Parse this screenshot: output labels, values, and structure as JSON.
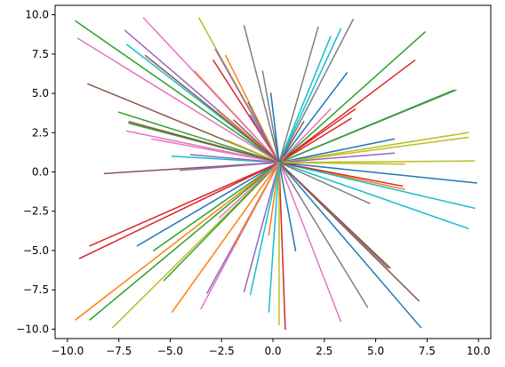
{
  "chart_data": {
    "type": "line",
    "title": "",
    "xlabel": "",
    "ylabel": "",
    "xlim": [
      -10.6,
      10.6
    ],
    "ylim": [
      -10.6,
      10.6
    ],
    "grid": false,
    "x_ticks": [
      -10.0,
      -7.5,
      -5.0,
      -2.5,
      0.0,
      2.5,
      5.0,
      7.5,
      10.0
    ],
    "y_ticks": [
      10.0,
      7.5,
      5.0,
      2.5,
      0.0,
      -2.5,
      -5.0,
      -7.5,
      -10.0
    ],
    "x_tick_labels": [
      "−10.0",
      "−7.5",
      "−5.0",
      "−2.5",
      "0.0",
      "2.5",
      "5.0",
      "7.5",
      "10.0"
    ],
    "y_tick_labels": [
      "10.0",
      "7.5",
      "5.0",
      "2.5",
      "0.0",
      "−2.5",
      "−5.0",
      "−7.5",
      "−10.0"
    ],
    "center": [
      0.3,
      0.6
    ],
    "series": [
      {
        "color": "#1f77b4",
        "end": [
          7.2,
          -9.9
        ]
      },
      {
        "color": "#ff7f0e",
        "end": [
          -4.9,
          -8.9
        ]
      },
      {
        "color": "#2ca02c",
        "end": [
          -8.9,
          -9.4
        ]
      },
      {
        "color": "#d62728",
        "end": [
          0.6,
          -10.0
        ]
      },
      {
        "color": "#9467bd",
        "end": [
          -1.4,
          -7.6
        ]
      },
      {
        "color": "#8c564b",
        "end": [
          7.1,
          -8.2
        ]
      },
      {
        "color": "#e377c2",
        "end": [
          3.3,
          -9.5
        ]
      },
      {
        "color": "#7f7f7f",
        "end": [
          4.6,
          -8.6
        ]
      },
      {
        "color": "#bcbd22",
        "end": [
          -7.8,
          -9.9
        ]
      },
      {
        "color": "#17becf",
        "end": [
          -1.1,
          -7.8
        ]
      },
      {
        "color": "#1f77b4",
        "end": [
          9.9,
          -0.7
        ]
      },
      {
        "color": "#ff7f0e",
        "end": [
          -9.6,
          -9.4
        ]
      },
      {
        "color": "#2ca02c",
        "end": [
          -5.3,
          -6.9
        ]
      },
      {
        "color": "#d62728",
        "end": [
          -9.4,
          -5.5
        ]
      },
      {
        "color": "#9467bd",
        "end": [
          -3.2,
          -7.7
        ]
      },
      {
        "color": "#8c564b",
        "end": [
          -8.2,
          -0.1
        ]
      },
      {
        "color": "#e377c2",
        "end": [
          -3.5,
          -8.7
        ]
      },
      {
        "color": "#7f7f7f",
        "end": [
          5.6,
          -6.1
        ]
      },
      {
        "color": "#bcbd22",
        "end": [
          9.8,
          0.7
        ]
      },
      {
        "color": "#17becf",
        "end": [
          9.5,
          -3.6
        ]
      },
      {
        "color": "#1f77b4",
        "end": [
          -6.6,
          -4.7
        ]
      },
      {
        "color": "#ff7f0e",
        "end": [
          6.4,
          -1.1
        ]
      },
      {
        "color": "#2ca02c",
        "end": [
          -5.8,
          -5.0
        ]
      },
      {
        "color": "#d62728",
        "end": [
          -8.9,
          -4.7
        ]
      },
      {
        "color": "#9467bd",
        "end": [
          -4.5,
          0.1
        ]
      },
      {
        "color": "#8c564b",
        "end": [
          5.7,
          -6.1
        ]
      },
      {
        "color": "#e377c2",
        "end": [
          -7.1,
          2.6
        ]
      },
      {
        "color": "#7f7f7f",
        "end": [
          3.9,
          9.7
        ]
      },
      {
        "color": "#bcbd22",
        "end": [
          9.5,
          2.5
        ]
      },
      {
        "color": "#17becf",
        "end": [
          -4.9,
          1.0
        ]
      },
      {
        "color": "#1f77b4",
        "end": [
          3.6,
          6.3
        ]
      },
      {
        "color": "#ff7f0e",
        "end": [
          -3.8,
          6.4
        ]
      },
      {
        "color": "#2ca02c",
        "end": [
          7.4,
          8.9
        ]
      },
      {
        "color": "#d62728",
        "end": [
          6.9,
          7.1
        ]
      },
      {
        "color": "#9467bd",
        "end": [
          -7.2,
          9.0
        ]
      },
      {
        "color": "#8c564b",
        "end": [
          -9.0,
          5.6
        ]
      },
      {
        "color": "#e377c2",
        "end": [
          -6.3,
          9.8
        ]
      },
      {
        "color": "#7f7f7f",
        "end": [
          -1.4,
          9.3
        ]
      },
      {
        "color": "#bcbd22",
        "end": [
          -3.6,
          9.8
        ]
      },
      {
        "color": "#17becf",
        "end": [
          3.3,
          9.1
        ]
      },
      {
        "color": "#1f77b4",
        "end": [
          5.9,
          2.1
        ]
      },
      {
        "color": "#ff7f0e",
        "end": [
          -2.7,
          3.9
        ]
      },
      {
        "color": "#2ca02c",
        "end": [
          -9.6,
          9.6
        ]
      },
      {
        "color": "#d62728",
        "end": [
          -2.9,
          7.1
        ]
      },
      {
        "color": "#9467bd",
        "end": [
          -2.8,
          7.8
        ]
      },
      {
        "color": "#8c564b",
        "end": [
          -1.9,
          3.3
        ]
      },
      {
        "color": "#e377c2",
        "end": [
          -9.5,
          8.5
        ]
      },
      {
        "color": "#7f7f7f",
        "end": [
          8.9,
          5.2
        ]
      },
      {
        "color": "#bcbd22",
        "end": [
          9.5,
          2.2
        ]
      },
      {
        "color": "#17becf",
        "end": [
          -7.1,
          8.1
        ]
      },
      {
        "color": "#1f77b4",
        "end": [
          -1.2,
          4.4
        ]
      },
      {
        "color": "#ff7f0e",
        "end": [
          -2.3,
          7.4
        ]
      },
      {
        "color": "#2ca02c",
        "end": [
          -7.0,
          3.1
        ]
      },
      {
        "color": "#d62728",
        "end": [
          4.0,
          4.0
        ]
      },
      {
        "color": "#9467bd",
        "end": [
          -1.1,
          3.6
        ]
      },
      {
        "color": "#8c564b",
        "end": [
          -6.2,
          7.4
        ]
      },
      {
        "color": "#e377c2",
        "end": [
          -5.9,
          2.1
        ]
      },
      {
        "color": "#7f7f7f",
        "end": [
          2.2,
          9.2
        ]
      },
      {
        "color": "#bcbd22",
        "end": [
          -2.2,
          2.0
        ]
      },
      {
        "color": "#17becf",
        "end": [
          2.8,
          8.6
        ]
      },
      {
        "color": "#1f77b4",
        "end": [
          1.1,
          -5.0
        ]
      },
      {
        "color": "#ff7f0e",
        "end": [
          -1.9,
          -4.7
        ]
      },
      {
        "color": "#2ca02c",
        "end": [
          -7.5,
          3.8
        ]
      },
      {
        "color": "#d62728",
        "end": [
          3.8,
          3.4
        ]
      },
      {
        "color": "#9467bd",
        "end": [
          5.9,
          1.2
        ]
      },
      {
        "color": "#8c564b",
        "end": [
          -7.0,
          3.2
        ]
      },
      {
        "color": "#e377c2",
        "end": [
          2.8,
          4.0
        ]
      },
      {
        "color": "#7f7f7f",
        "end": [
          -0.5,
          6.4
        ]
      },
      {
        "color": "#bcbd22",
        "end": [
          6.4,
          0.5
        ]
      },
      {
        "color": "#17becf",
        "end": [
          9.8,
          -2.3
        ]
      },
      {
        "color": "#1f77b4",
        "end": [
          -0.1,
          5.0
        ]
      },
      {
        "color": "#ff7f0e",
        "end": [
          -0.2,
          -4.0
        ]
      },
      {
        "color": "#2ca02c",
        "end": [
          8.8,
          5.2
        ]
      },
      {
        "color": "#d62728",
        "end": [
          6.3,
          -0.9
        ]
      },
      {
        "color": "#9467bd",
        "end": [
          -4.0,
          1.1
        ]
      },
      {
        "color": "#8c564b",
        "end": [
          1.5,
          3.2
        ]
      },
      {
        "color": "#e377c2",
        "end": [
          -2.6,
          -2.9
        ]
      },
      {
        "color": "#7f7f7f",
        "end": [
          4.7,
          -2.0
        ]
      },
      {
        "color": "#bcbd22",
        "end": [
          0.3,
          -9.7
        ]
      },
      {
        "color": "#17becf",
        "end": [
          -0.2,
          -8.9
        ]
      }
    ]
  }
}
